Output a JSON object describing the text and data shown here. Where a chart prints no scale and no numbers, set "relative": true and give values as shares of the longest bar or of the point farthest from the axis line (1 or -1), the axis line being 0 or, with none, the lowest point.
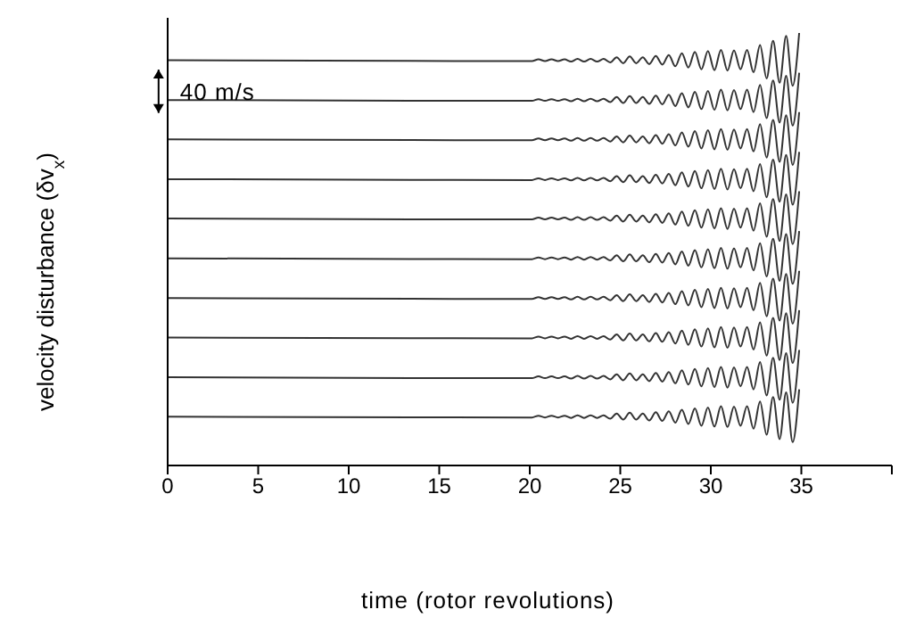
{
  "chart_data": {
    "type": "line",
    "relative": true,
    "xlabel": "time (rotor revolutions)",
    "ylabel": "velocity disturbance (δv$_{x}$)",
    "annotations": [
      "40 m/s"
    ],
    "x": [
      0,
      20.12,
      20.48,
      20.84,
      21.2,
      21.56,
      21.92,
      22.28,
      22.64,
      23,
      23.36,
      23.72,
      24.08,
      24.44,
      24.8,
      25.16,
      25.52,
      25.88,
      26.24,
      26.6,
      26.96,
      27.32,
      27.68,
      28.04,
      28.4,
      28.76,
      29.12,
      29.48,
      29.84,
      30.2,
      30.56,
      30.92,
      31.28,
      31.64,
      32,
      32.36,
      32.72,
      33.08,
      33.44,
      33.8,
      34.16,
      34.52,
      34.88
    ],
    "xlim": [
      0,
      40
    ],
    "xticks": [
      0,
      5,
      10,
      15,
      20,
      25,
      30,
      35,
      {
        "value": 40,
        "label": null
      }
    ],
    "grid": false,
    "legend": false,
    "marker": "none",
    "line_style": "solid",
    "series": [
      {
        "color": "#333333",
        "values": [
          0.937,
          0.935,
          0.939,
          0.935,
          0.939,
          0.935,
          0.939,
          0.934,
          0.94,
          0.934,
          0.94,
          0.934,
          0.94,
          0.932,
          0.944,
          0.93,
          0.946,
          0.93,
          0.944,
          0.928,
          0.947,
          0.927,
          0.949,
          0.923,
          0.953,
          0.92,
          0.956,
          0.916,
          0.958,
          0.914,
          0.961,
          0.913,
          0.96,
          0.916,
          0.961,
          0.909,
          0.972,
          0.895,
          0.982,
          0.885,
          0.993,
          0.878,
          1.0
        ]
      },
      {
        "color": "#333333",
        "values": [
          0.845,
          0.843,
          0.847,
          0.843,
          0.847,
          0.843,
          0.847,
          0.842,
          0.848,
          0.842,
          0.848,
          0.842,
          0.848,
          0.84,
          0.852,
          0.838,
          0.854,
          0.838,
          0.852,
          0.836,
          0.855,
          0.835,
          0.857,
          0.831,
          0.861,
          0.828,
          0.864,
          0.824,
          0.866,
          0.822,
          0.869,
          0.821,
          0.868,
          0.824,
          0.869,
          0.817,
          0.88,
          0.803,
          0.89,
          0.793,
          0.901,
          0.786,
          0.908
        ]
      },
      {
        "color": "#333333",
        "values": [
          0.754,
          0.752,
          0.756,
          0.752,
          0.756,
          0.752,
          0.756,
          0.751,
          0.757,
          0.751,
          0.757,
          0.751,
          0.757,
          0.749,
          0.761,
          0.747,
          0.763,
          0.747,
          0.761,
          0.745,
          0.764,
          0.744,
          0.766,
          0.74,
          0.77,
          0.737,
          0.773,
          0.733,
          0.775,
          0.731,
          0.778,
          0.73,
          0.777,
          0.733,
          0.778,
          0.726,
          0.789,
          0.712,
          0.799,
          0.702,
          0.81,
          0.695,
          0.817
        ]
      },
      {
        "color": "#333333",
        "values": [
          0.662,
          0.66,
          0.664,
          0.66,
          0.664,
          0.66,
          0.664,
          0.659,
          0.665,
          0.659,
          0.665,
          0.659,
          0.665,
          0.657,
          0.669,
          0.655,
          0.671,
          0.655,
          0.669,
          0.653,
          0.672,
          0.652,
          0.674,
          0.648,
          0.678,
          0.645,
          0.681,
          0.641,
          0.683,
          0.639,
          0.686,
          0.638,
          0.685,
          0.641,
          0.686,
          0.634,
          0.697,
          0.62,
          0.707,
          0.61,
          0.718,
          0.603,
          0.725
        ]
      },
      {
        "color": "#333333",
        "values": [
          0.571,
          0.569,
          0.573,
          0.569,
          0.573,
          0.569,
          0.573,
          0.568,
          0.574,
          0.568,
          0.574,
          0.568,
          0.574,
          0.566,
          0.578,
          0.564,
          0.58,
          0.564,
          0.578,
          0.562,
          0.581,
          0.561,
          0.583,
          0.557,
          0.587,
          0.554,
          0.59,
          0.55,
          0.592,
          0.548,
          0.595,
          0.547,
          0.594,
          0.55,
          0.595,
          0.543,
          0.606,
          0.529,
          0.616,
          0.519,
          0.627,
          0.512,
          0.634
        ]
      },
      {
        "color": "#333333",
        "values": [
          0.479,
          0.477,
          0.481,
          0.477,
          0.481,
          0.477,
          0.481,
          0.476,
          0.482,
          0.476,
          0.482,
          0.476,
          0.482,
          0.474,
          0.486,
          0.472,
          0.488,
          0.472,
          0.486,
          0.47,
          0.489,
          0.469,
          0.491,
          0.465,
          0.495,
          0.462,
          0.498,
          0.458,
          0.5,
          0.456,
          0.503,
          0.455,
          0.502,
          0.458,
          0.503,
          0.451,
          0.514,
          0.437,
          0.524,
          0.427,
          0.535,
          0.42,
          0.542
        ]
      },
      {
        "color": "#333333",
        "values": [
          0.387,
          0.385,
          0.389,
          0.385,
          0.389,
          0.385,
          0.389,
          0.384,
          0.39,
          0.384,
          0.39,
          0.384,
          0.39,
          0.382,
          0.394,
          0.38,
          0.396,
          0.38,
          0.394,
          0.378,
          0.397,
          0.377,
          0.399,
          0.373,
          0.403,
          0.37,
          0.406,
          0.366,
          0.408,
          0.364,
          0.411,
          0.363,
          0.41,
          0.366,
          0.411,
          0.359,
          0.422,
          0.345,
          0.432,
          0.335,
          0.443,
          0.328,
          0.45
        ]
      },
      {
        "color": "#333333",
        "values": [
          0.296,
          0.294,
          0.298,
          0.294,
          0.298,
          0.294,
          0.298,
          0.293,
          0.299,
          0.293,
          0.299,
          0.293,
          0.299,
          0.291,
          0.303,
          0.289,
          0.305,
          0.289,
          0.303,
          0.287,
          0.306,
          0.286,
          0.308,
          0.282,
          0.312,
          0.279,
          0.315,
          0.275,
          0.317,
          0.273,
          0.32,
          0.272,
          0.319,
          0.275,
          0.32,
          0.268,
          0.331,
          0.254,
          0.341,
          0.244,
          0.352,
          0.237,
          0.359
        ]
      },
      {
        "color": "#333333",
        "values": [
          0.204,
          0.202,
          0.206,
          0.202,
          0.206,
          0.202,
          0.206,
          0.201,
          0.207,
          0.201,
          0.207,
          0.201,
          0.207,
          0.199,
          0.211,
          0.197,
          0.213,
          0.197,
          0.211,
          0.195,
          0.214,
          0.194,
          0.216,
          0.19,
          0.22,
          0.187,
          0.223,
          0.183,
          0.225,
          0.181,
          0.228,
          0.18,
          0.227,
          0.183,
          0.228,
          0.176,
          0.239,
          0.162,
          0.249,
          0.152,
          0.26,
          0.145,
          0.267
        ]
      },
      {
        "color": "#333333",
        "values": [
          0.113,
          0.111,
          0.115,
          0.111,
          0.115,
          0.111,
          0.115,
          0.11,
          0.116,
          0.11,
          0.116,
          0.11,
          0.116,
          0.108,
          0.12,
          0.106,
          0.122,
          0.106,
          0.12,
          0.104,
          0.123,
          0.103,
          0.125,
          0.099,
          0.129,
          0.096,
          0.132,
          0.092,
          0.134,
          0.09,
          0.137,
          0.089,
          0.136,
          0.092,
          0.137,
          0.085,
          0.148,
          0.071,
          0.158,
          0.061,
          0.169,
          0.054,
          0.176
        ]
      }
    ]
  }
}
